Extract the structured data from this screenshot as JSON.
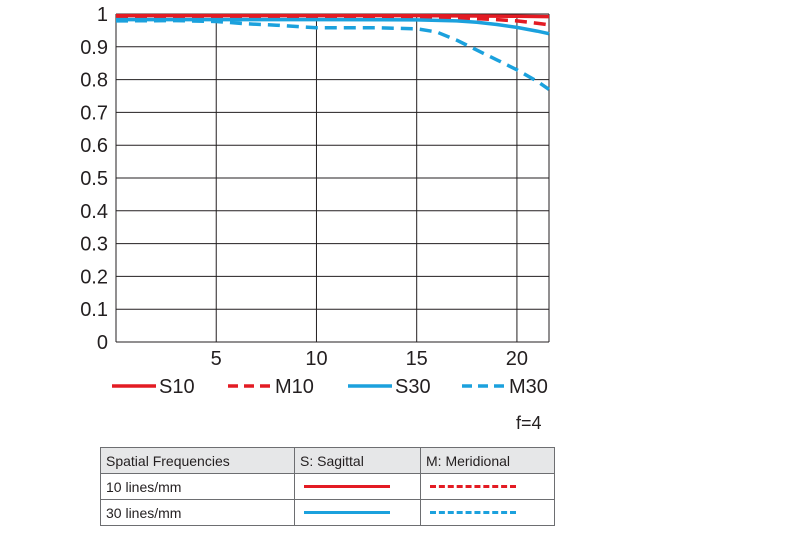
{
  "chart_data": {
    "type": "line",
    "aperture_label": "f=4",
    "xlim": [
      0,
      21.6
    ],
    "ylim": [
      0,
      1
    ],
    "x_ticks": [
      5,
      10,
      15,
      20
    ],
    "y_ticks": [
      0,
      0.1,
      0.2,
      0.3,
      0.4,
      0.5,
      0.6,
      0.7,
      0.8,
      0.9,
      1
    ],
    "y_tick_labels": [
      "0",
      "0.1",
      "0.2",
      "0.3",
      "0.4",
      "0.5",
      "0.6",
      "0.7",
      "0.8",
      "0.9",
      "1"
    ],
    "grid": true,
    "legend_position": "bottom",
    "series": [
      {
        "name": "S10",
        "color": "#e31b23",
        "dash": "solid",
        "x": [
          0,
          5,
          10,
          15,
          18,
          20,
          21.6
        ],
        "y": [
          0.995,
          0.995,
          0.995,
          0.995,
          0.994,
          0.993,
          0.992
        ]
      },
      {
        "name": "M10",
        "color": "#e31b23",
        "dash": "dashed",
        "x": [
          0,
          5,
          10,
          15,
          17,
          18,
          19,
          20,
          21,
          21.6
        ],
        "y": [
          0.99,
          0.99,
          0.99,
          0.99,
          0.988,
          0.986,
          0.983,
          0.979,
          0.972,
          0.967
        ]
      },
      {
        "name": "S30",
        "color": "#1ba1dd",
        "dash": "solid",
        "x": [
          0,
          5,
          10,
          15,
          17,
          18,
          19,
          20,
          21,
          21.6
        ],
        "y": [
          0.983,
          0.983,
          0.983,
          0.982,
          0.979,
          0.975,
          0.968,
          0.959,
          0.948,
          0.94
        ]
      },
      {
        "name": "M30",
        "color": "#1ba1dd",
        "dash": "dashed",
        "x": [
          0,
          3,
          5,
          6.5,
          8,
          10,
          13,
          15,
          16,
          17,
          18,
          19,
          20,
          21,
          21.6
        ],
        "y": [
          0.979,
          0.98,
          0.977,
          0.97,
          0.966,
          0.958,
          0.958,
          0.955,
          0.945,
          0.92,
          0.89,
          0.86,
          0.83,
          0.795,
          0.77
        ]
      }
    ]
  },
  "table": {
    "headers": [
      "Spatial Frequencies",
      "S: Sagittal",
      "M: Meridional"
    ],
    "rows": [
      {
        "label": "10 lines/mm",
        "sag_color": "#e31b23",
        "mer_color": "#e31b23"
      },
      {
        "label": "30 lines/mm",
        "sag_color": "#1ba1dd",
        "mer_color": "#1ba1dd"
      }
    ]
  }
}
